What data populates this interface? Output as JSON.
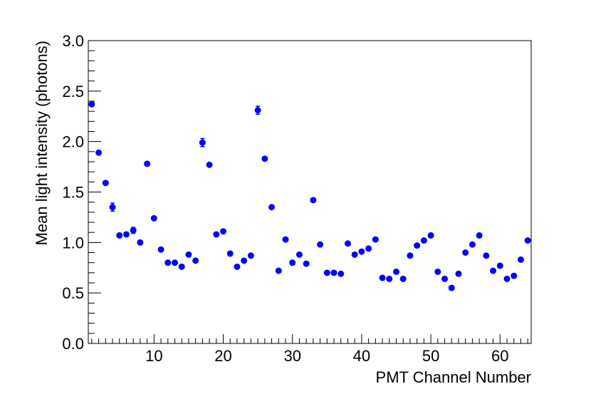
{
  "chart_data": {
    "type": "scatter",
    "title": "",
    "xlabel": "PMT Channel Number",
    "ylabel": "Mean light intensity (photons)",
    "xlim": [
      0.5,
      64.5
    ],
    "ylim": [
      0,
      3.0
    ],
    "x_ticks": [
      10,
      20,
      30,
      40,
      50,
      60
    ],
    "x_tick_labels": [
      "10",
      "20",
      "30",
      "40",
      "50",
      "60"
    ],
    "y_ticks": [
      0,
      0.5,
      1.0,
      1.5,
      2.0,
      2.5,
      3.0
    ],
    "y_tick_labels": [
      "0.0",
      "0.5",
      "1.0",
      "1.5",
      "2.0",
      "2.5",
      "3.0"
    ],
    "grid": false,
    "marker_color": "#0000ff",
    "series": [
      {
        "x": [
          1,
          2,
          3,
          4,
          5,
          6,
          7,
          8,
          9,
          10,
          11,
          12,
          13,
          14,
          15,
          16,
          17,
          18,
          19,
          20,
          21,
          22,
          23,
          24,
          25,
          26,
          27,
          28,
          29,
          30,
          31,
          32,
          33,
          34,
          35,
          36,
          37,
          38,
          39,
          40,
          41,
          42,
          43,
          44,
          45,
          46,
          47,
          48,
          49,
          50,
          51,
          52,
          53,
          54,
          55,
          56,
          57,
          58,
          59,
          60,
          61,
          62,
          63,
          64
        ],
        "y": [
          2.37,
          1.89,
          1.59,
          1.35,
          1.07,
          1.08,
          1.12,
          1.0,
          1.78,
          1.24,
          0.93,
          0.8,
          0.8,
          0.76,
          0.88,
          0.82,
          1.99,
          1.77,
          1.08,
          1.11,
          0.89,
          0.76,
          0.82,
          0.87,
          2.31,
          1.83,
          1.35,
          0.72,
          1.03,
          0.8,
          0.88,
          0.79,
          1.42,
          0.98,
          0.7,
          0.7,
          0.69,
          0.99,
          0.88,
          0.91,
          0.94,
          1.03,
          0.65,
          0.64,
          0.71,
          0.64,
          0.87,
          0.97,
          1.02,
          1.07,
          0.71,
          0.64,
          0.55,
          0.69,
          0.9,
          0.98,
          1.07,
          0.87,
          0.72,
          0.77,
          0.64,
          0.67,
          0.83,
          1.02
        ],
        "y_err": [
          0.02,
          0.02,
          0.02,
          0.04,
          0.02,
          0.02,
          0.03,
          0.02,
          0.02,
          0.02,
          0.02,
          0.02,
          0.02,
          0.02,
          0.02,
          0.02,
          0.04,
          0.02,
          0.02,
          0.02,
          0.02,
          0.02,
          0.02,
          0.02,
          0.04,
          0.02,
          0.02,
          0.02,
          0.02,
          0.02,
          0.02,
          0.02,
          0.02,
          0.02,
          0.02,
          0.02,
          0.02,
          0.02,
          0.02,
          0.02,
          0.02,
          0.02,
          0.02,
          0.02,
          0.02,
          0.02,
          0.02,
          0.02,
          0.02,
          0.02,
          0.02,
          0.02,
          0.02,
          0.02,
          0.02,
          0.02,
          0.02,
          0.02,
          0.02,
          0.02,
          0.02,
          0.02,
          0.02,
          0.02
        ]
      }
    ]
  }
}
